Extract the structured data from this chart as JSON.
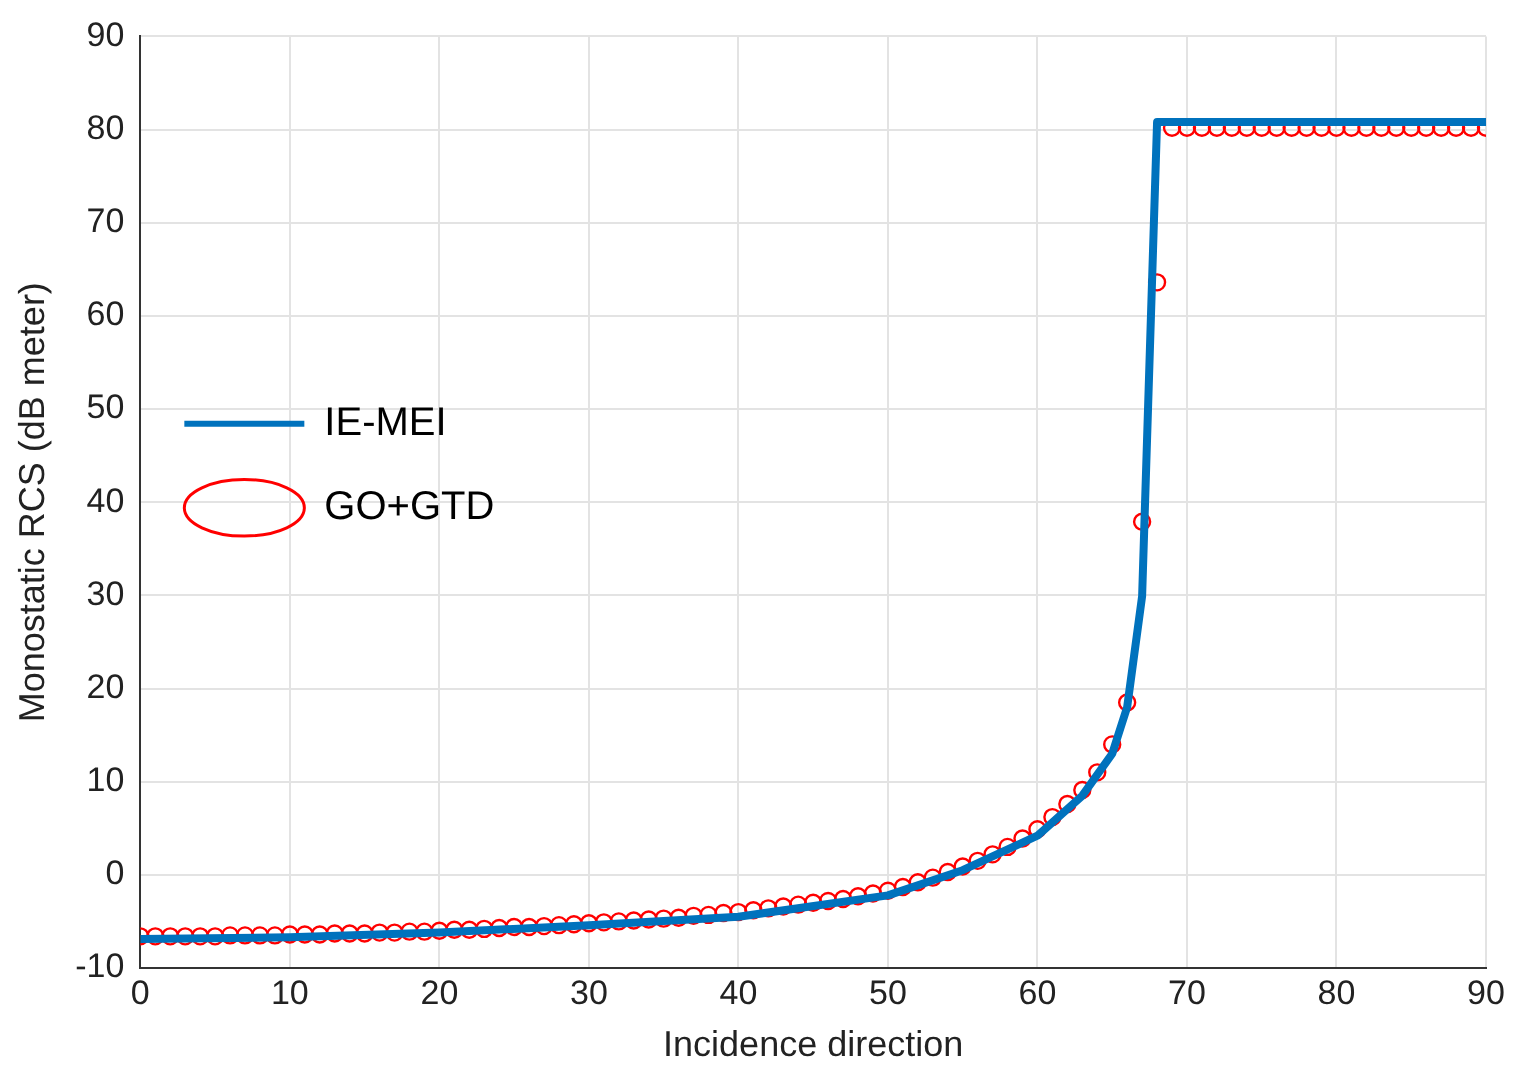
{
  "chart_data": {
    "type": "line",
    "xlabel": "Incidence direction",
    "ylabel": "Monostatic RCS (dB meter)",
    "xlim": [
      0,
      90
    ],
    "xticks": [
      0,
      10,
      20,
      30,
      40,
      50,
      60,
      70,
      80,
      90
    ],
    "ylim": [
      -10,
      90
    ],
    "yticks": [
      -10,
      0,
      10,
      20,
      30,
      40,
      50,
      60,
      70,
      80,
      90
    ],
    "grid": true,
    "legend": "top",
    "series": [
      {
        "name": "IE-MEI",
        "color": "#0072bd",
        "marker": "none",
        "x": [
          0,
          10,
          20,
          30,
          40,
          50,
          55,
          60,
          63,
          65,
          66,
          67,
          68,
          90
        ],
        "values": [
          -6.9,
          -6.7,
          -6.2,
          -5.4,
          -4.5,
          -2.2,
          0.5,
          4.2,
          8.5,
          13,
          18,
          29.9,
          80.8,
          80.8
        ]
      },
      {
        "name": "GO+GTD",
        "color": "#ff0000",
        "type": "scatter",
        "marker": "circle",
        "x": [
          0,
          1,
          2,
          3,
          4,
          5,
          6,
          7,
          8,
          9,
          10,
          11,
          12,
          13,
          14,
          15,
          16,
          17,
          18,
          19,
          20,
          21,
          22,
          23,
          24,
          25,
          26,
          27,
          28,
          29,
          30,
          31,
          32,
          33,
          34,
          35,
          36,
          37,
          38,
          39,
          40,
          41,
          42,
          43,
          44,
          45,
          46,
          47,
          48,
          49,
          50,
          51,
          52,
          53,
          54,
          55,
          56,
          57,
          58,
          59,
          60,
          61,
          62,
          63,
          64,
          65,
          66,
          67,
          68,
          69,
          70,
          71,
          72,
          73,
          74,
          75,
          76,
          77,
          78,
          79,
          80,
          81,
          82,
          83,
          84,
          85,
          86,
          87,
          88,
          89,
          90
        ],
        "values": [
          -6.6,
          -6.6,
          -6.6,
          -6.6,
          -6.6,
          -6.6,
          -6.5,
          -6.5,
          -6.5,
          -6.5,
          -6.4,
          -6.4,
          -6.4,
          -6.3,
          -6.3,
          -6.3,
          -6.2,
          -6.2,
          -6.1,
          -6.1,
          -6.0,
          -5.9,
          -5.9,
          -5.8,
          -5.7,
          -5.6,
          -5.6,
          -5.5,
          -5.4,
          -5.3,
          -5.2,
          -5.1,
          -5.0,
          -4.9,
          -4.8,
          -4.7,
          -4.6,
          -4.4,
          -4.3,
          -4.1,
          -4.0,
          -3.8,
          -3.6,
          -3.4,
          -3.2,
          -3.0,
          -2.8,
          -2.6,
          -2.3,
          -2.0,
          -1.7,
          -1.3,
          -0.8,
          -0.3,
          0.3,
          0.9,
          1.5,
          2.2,
          3.0,
          3.9,
          4.9,
          6.2,
          7.6,
          9.1,
          11,
          14,
          18.5,
          37.9,
          63.6,
          80.2,
          80.2,
          80.2,
          80.2,
          80.2,
          80.2,
          80.2,
          80.2,
          80.2,
          80.2,
          80.2,
          80.2,
          80.2,
          80.2,
          80.2,
          80.2,
          80.2,
          80.2,
          80.2,
          80.2,
          80.2,
          80.2
        ]
      }
    ]
  }
}
